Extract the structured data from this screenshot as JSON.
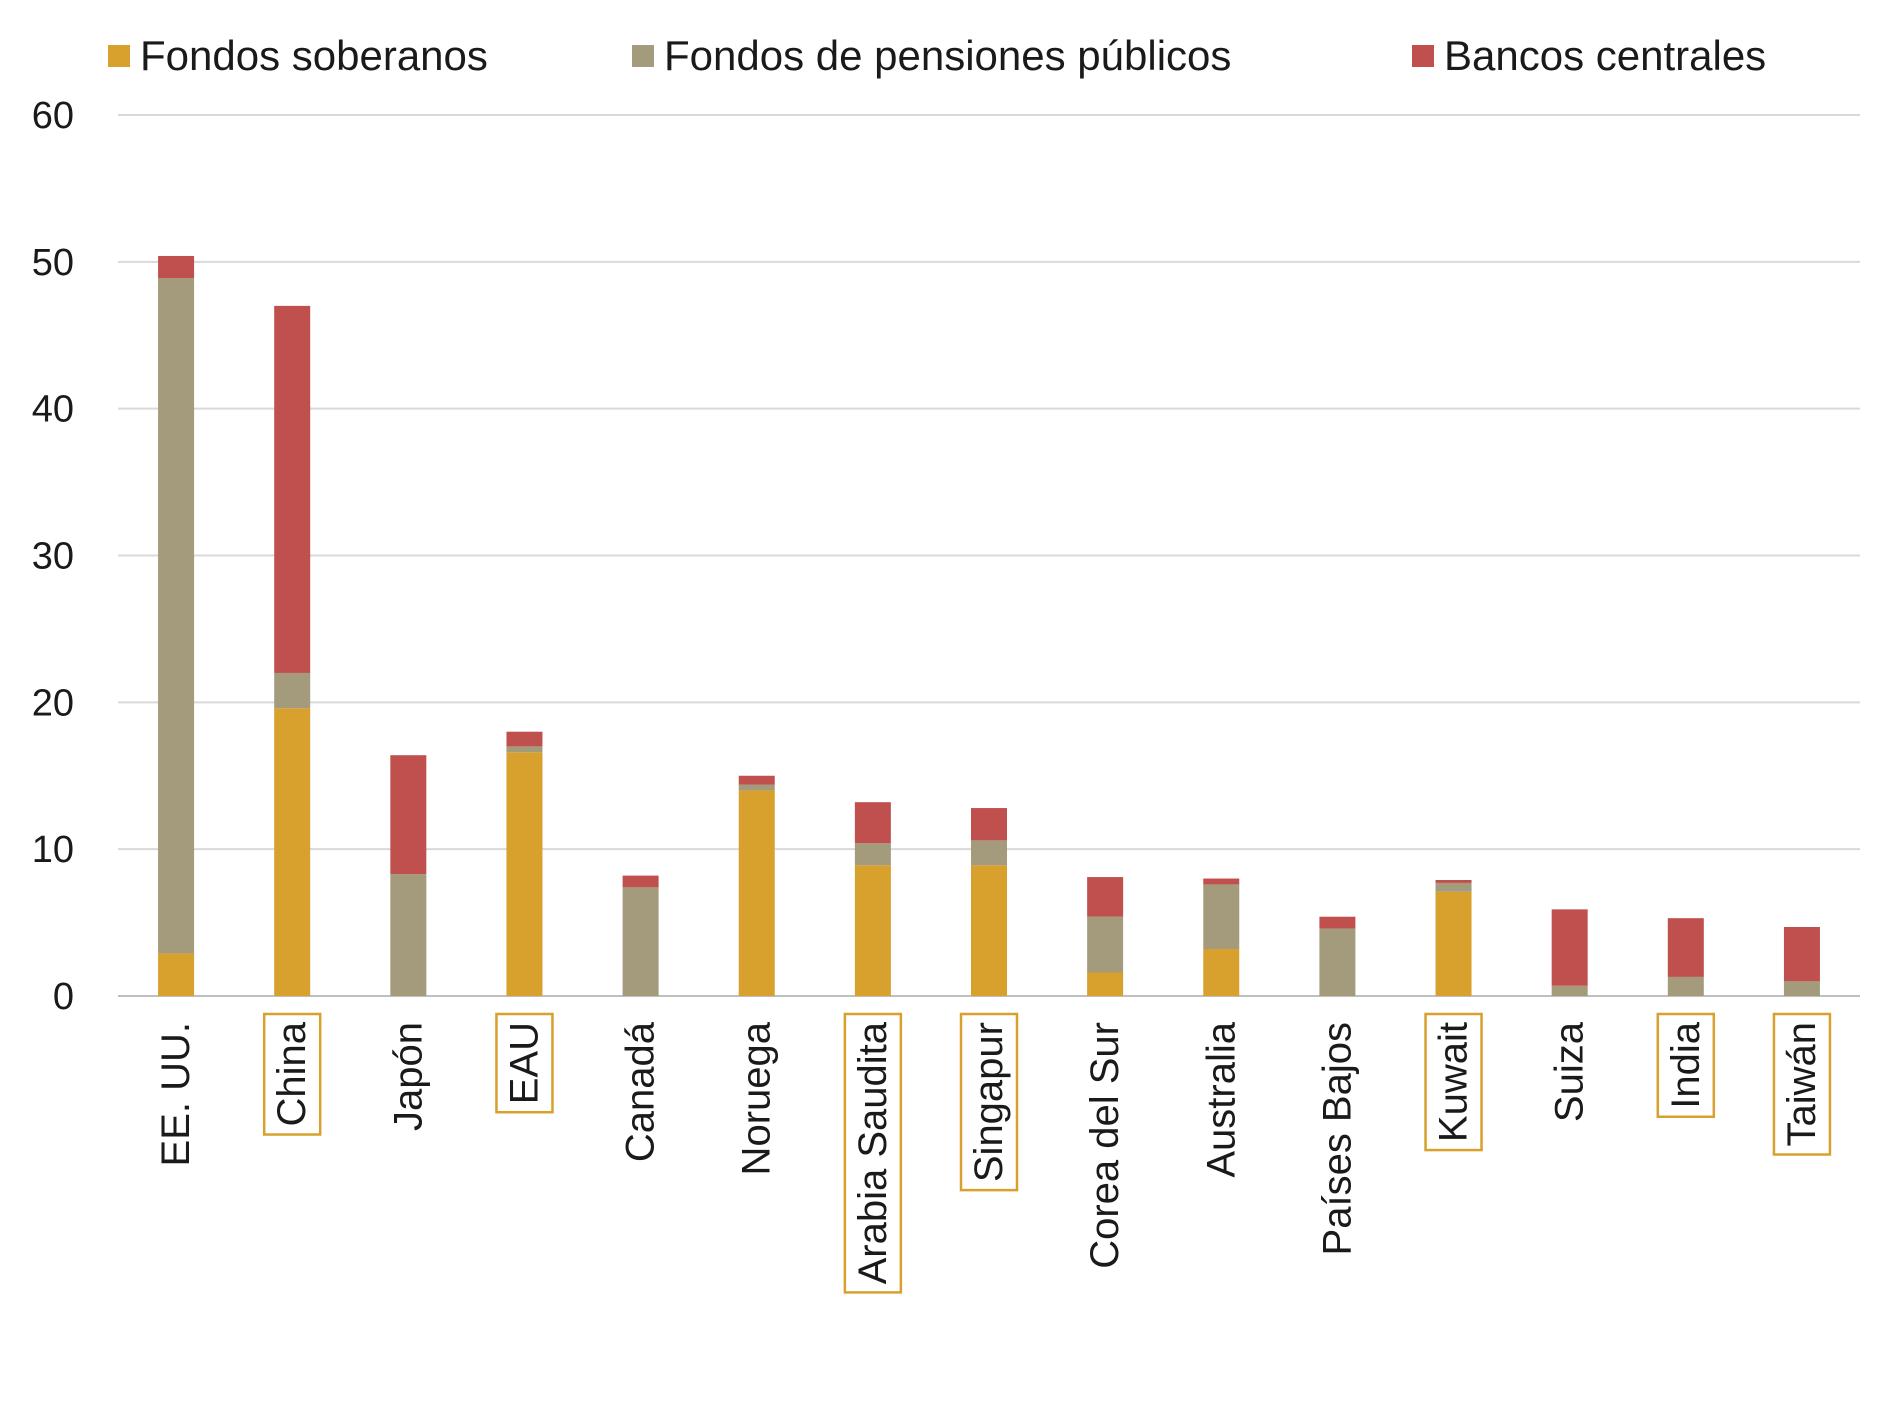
{
  "chart_data": {
    "type": "bar",
    "stacked": true,
    "categories": [
      "EE. UU.",
      "China",
      "Japón",
      "EAU",
      "Canadá",
      "Noruega",
      "Arabia Saudita",
      "Singapur",
      "Corea del Sur",
      "Australia",
      "Países Bajos",
      "Kuwait",
      "Suiza",
      "India",
      "Taiwán"
    ],
    "highlighted_categories": [
      "China",
      "EAU",
      "Arabia Saudita",
      "Singapur",
      "Kuwait",
      "India",
      "Taiwán"
    ],
    "series": [
      {
        "name": "Fondos soberanos",
        "color": "#d8a02c",
        "values": [
          2.9,
          19.6,
          0,
          16.6,
          0,
          14.0,
          8.9,
          8.9,
          1.6,
          3.2,
          0,
          7.1,
          0,
          0,
          0
        ]
      },
      {
        "name": "Fondos de pensiones públicos",
        "color": "#a39b7b",
        "values": [
          46.0,
          2.4,
          8.3,
          0.4,
          7.4,
          0.4,
          1.5,
          1.7,
          3.8,
          4.4,
          4.6,
          0.6,
          0.7,
          1.3,
          1.0
        ]
      },
      {
        "name": "Bancos centrales",
        "color": "#c0504d",
        "values": [
          1.5,
          25.0,
          8.1,
          1.0,
          0.8,
          0.6,
          2.8,
          2.2,
          2.7,
          0.4,
          0.8,
          0.2,
          5.2,
          4.0,
          3.7
        ]
      }
    ],
    "ylim": [
      0,
      60
    ],
    "yticks": [
      "0",
      "10",
      "20",
      "30",
      "40",
      "50",
      "60"
    ],
    "grid": true,
    "legend_position": "top"
  }
}
